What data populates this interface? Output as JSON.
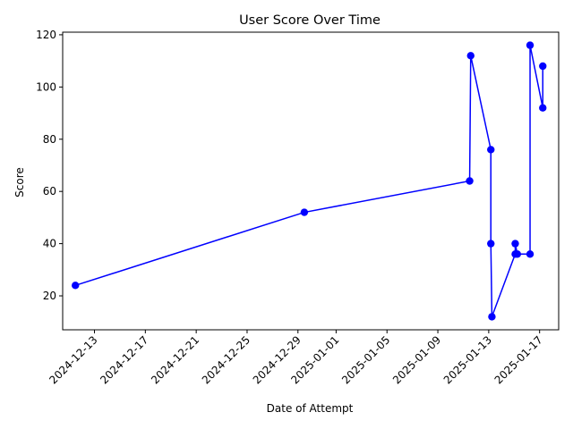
{
  "chart_data": {
    "type": "line",
    "title": "User Score Over Time",
    "xlabel": "Date of Attempt",
    "ylabel": "Score",
    "x_ticks": [
      "2024-12-13",
      "2024-12-17",
      "2024-12-21",
      "2024-12-25",
      "2024-12-29",
      "2025-01-01",
      "2025-01-05",
      "2025-01-09",
      "2025-01-13",
      "2025-01-17"
    ],
    "y_ticks": [
      20,
      40,
      60,
      80,
      100,
      120
    ],
    "xlim": [
      "2024-12-10T12:00",
      "2025-01-18T12:00"
    ],
    "ylim": [
      7,
      121
    ],
    "grid": false,
    "legend": "none",
    "series": [
      {
        "color": "#0000ff",
        "marker": "circle",
        "points": [
          {
            "x": "2024-12-11T12:00",
            "y": 24
          },
          {
            "x": "2024-12-29T12:00",
            "y": 52
          },
          {
            "x": "2025-01-11T12:00",
            "y": 64
          },
          {
            "x": "2025-01-11T14:00",
            "y": 112
          },
          {
            "x": "2025-01-13T04:00",
            "y": 76
          },
          {
            "x": "2025-01-13T04:00",
            "y": 40
          },
          {
            "x": "2025-01-13T06:00",
            "y": 12
          },
          {
            "x": "2025-01-15T02:00",
            "y": 36
          },
          {
            "x": "2025-01-15T02:00",
            "y": 40
          },
          {
            "x": "2025-01-15T06:00",
            "y": 36
          },
          {
            "x": "2025-01-16T06:00",
            "y": 36
          },
          {
            "x": "2025-01-16T06:00",
            "y": 116
          },
          {
            "x": "2025-01-17T06:00",
            "y": 92
          },
          {
            "x": "2025-01-17T06:00",
            "y": 108
          }
        ]
      }
    ]
  }
}
